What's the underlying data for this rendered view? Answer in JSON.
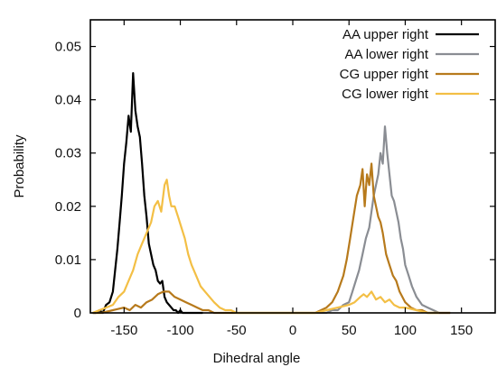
{
  "chart_data": {
    "type": "line",
    "title": "",
    "xlabel": "Dihedral angle",
    "ylabel": "Probability",
    "xlim": [
      -180,
      180
    ],
    "ylim": [
      0,
      0.055
    ],
    "x_ticks": [
      -150,
      -100,
      -50,
      0,
      50,
      100,
      150
    ],
    "x_tick_labels": [
      "-150",
      "-100",
      "-50",
      "0",
      "50",
      "100",
      "150"
    ],
    "y_ticks": [
      0,
      0.01,
      0.02,
      0.03,
      0.04,
      0.05
    ],
    "y_tick_labels": [
      "0",
      "0.01",
      "0.02",
      "0.03",
      "0.04",
      "0.05"
    ],
    "grid": false,
    "legend_position": "top-right",
    "series": [
      {
        "name": "AA upper right",
        "color": "#000000",
        "x": [
          -178,
          -175,
          -172,
          -169,
          -166,
          -163,
          -160,
          -158,
          -156,
          -154,
          -152,
          -150,
          -148,
          -146,
          -144,
          -142,
          -140,
          -138,
          -136,
          -134,
          -132,
          -130,
          -128,
          -126,
          -124,
          -122,
          -120,
          -118,
          -116,
          -114,
          -112,
          -110,
          -108,
          -106,
          -104,
          -102,
          -100,
          -98,
          -95,
          -90,
          -85,
          -80
        ],
        "y": [
          0.0,
          0.0,
          0.0005,
          0.0,
          0.0015,
          0.002,
          0.004,
          0.008,
          0.012,
          0.017,
          0.022,
          0.028,
          0.032,
          0.037,
          0.034,
          0.045,
          0.038,
          0.035,
          0.033,
          0.028,
          0.022,
          0.018,
          0.013,
          0.011,
          0.009,
          0.008,
          0.006,
          0.0055,
          0.006,
          0.003,
          0.002,
          0.0015,
          0.001,
          0.0005,
          0.0005,
          0.0,
          0.0005,
          0.0,
          0.0,
          0.0,
          0.0,
          0.0
        ]
      },
      {
        "name": "AA lower right",
        "color": "#8a8d93",
        "x": [
          20,
          25,
          30,
          35,
          40,
          45,
          50,
          53,
          56,
          59,
          62,
          65,
          68,
          70,
          72,
          74,
          76,
          78,
          80,
          82,
          84,
          86,
          88,
          90,
          92,
          94,
          96,
          98,
          100,
          103,
          106,
          110,
          115,
          120,
          125,
          130,
          140
        ],
        "y": [
          0.0,
          0.0,
          0.0,
          0.0005,
          0.0005,
          0.0015,
          0.002,
          0.004,
          0.006,
          0.008,
          0.011,
          0.014,
          0.016,
          0.019,
          0.022,
          0.024,
          0.026,
          0.03,
          0.028,
          0.035,
          0.03,
          0.026,
          0.022,
          0.021,
          0.019,
          0.017,
          0.014,
          0.012,
          0.009,
          0.007,
          0.005,
          0.003,
          0.0015,
          0.001,
          0.0005,
          0.0,
          0.0
        ]
      },
      {
        "name": "CG upper right",
        "color": "#b77a1c",
        "x": [
          -178,
          -170,
          -160,
          -150,
          -145,
          -140,
          -135,
          -130,
          -125,
          -120,
          -115,
          -110,
          -105,
          -100,
          -95,
          -90,
          -85,
          -80,
          -75,
          -70,
          -60,
          -50,
          20,
          30,
          35,
          40,
          45,
          48,
          51,
          54,
          57,
          60,
          62,
          64,
          66,
          68,
          70,
          72,
          74,
          76,
          78,
          80,
          83,
          86,
          89,
          92,
          95,
          100,
          105,
          110,
          115,
          120,
          130,
          140
        ],
        "y": [
          0.0,
          0.0,
          0.0005,
          0.001,
          0.0005,
          0.0015,
          0.001,
          0.002,
          0.0025,
          0.0035,
          0.004,
          0.004,
          0.003,
          0.0025,
          0.002,
          0.0015,
          0.001,
          0.0005,
          0.0005,
          0.0,
          0.0,
          0.0,
          0.0,
          0.001,
          0.002,
          0.004,
          0.007,
          0.01,
          0.014,
          0.018,
          0.022,
          0.024,
          0.027,
          0.02,
          0.026,
          0.024,
          0.028,
          0.022,
          0.02,
          0.018,
          0.017,
          0.015,
          0.011,
          0.009,
          0.007,
          0.006,
          0.004,
          0.002,
          0.001,
          0.0005,
          0.0005,
          0.0,
          0.0,
          0.0
        ]
      },
      {
        "name": "CG lower right",
        "color": "#f3bf45",
        "x": [
          -178,
          -172,
          -166,
          -160,
          -155,
          -150,
          -146,
          -142,
          -138,
          -134,
          -130,
          -126,
          -123,
          -120,
          -117,
          -114,
          -112,
          -110,
          -108,
          -105,
          -102,
          -99,
          -96,
          -93,
          -90,
          -86,
          -82,
          -78,
          -74,
          -70,
          -65,
          -60,
          -55,
          -50,
          20,
          30,
          40,
          50,
          55,
          60,
          63,
          66,
          70,
          74,
          78,
          82,
          86,
          90,
          95,
          100,
          110,
          120,
          130
        ],
        "y": [
          0.0,
          0.0005,
          0.001,
          0.0015,
          0.003,
          0.004,
          0.006,
          0.008,
          0.011,
          0.013,
          0.015,
          0.017,
          0.02,
          0.021,
          0.019,
          0.024,
          0.025,
          0.022,
          0.02,
          0.02,
          0.018,
          0.016,
          0.014,
          0.011,
          0.009,
          0.007,
          0.005,
          0.004,
          0.003,
          0.002,
          0.001,
          0.0005,
          0.0005,
          0.0,
          0.0,
          0.0005,
          0.001,
          0.0015,
          0.002,
          0.003,
          0.0035,
          0.003,
          0.004,
          0.0025,
          0.003,
          0.002,
          0.0025,
          0.0015,
          0.001,
          0.001,
          0.0005,
          0.0,
          0.0
        ]
      }
    ]
  }
}
